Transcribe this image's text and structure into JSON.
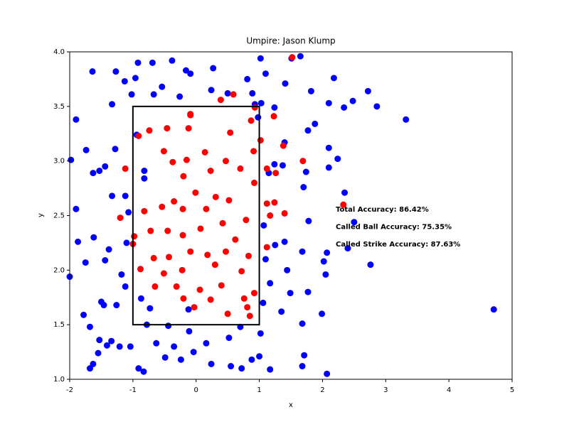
{
  "chart_data": {
    "type": "scatter",
    "title": "Umpire: Jason Klump",
    "x_label": "x",
    "y_label": "y",
    "xlim": [
      -2,
      5
    ],
    "ylim": [
      1,
      4
    ],
    "xticks": [
      -2,
      -1,
      0,
      1,
      2,
      3,
      4,
      5
    ],
    "yticks": [
      {
        "value": 1,
        "label": "1.0"
      },
      {
        "value": 1.5,
        "label": "1.5"
      },
      {
        "value": 2,
        "label": "2.0"
      },
      {
        "value": 2.5,
        "label": "2.5"
      },
      {
        "value": 3,
        "label": "3.0"
      },
      {
        "value": 3.5,
        "label": "3.5"
      },
      {
        "value": 4,
        "label": "4.0"
      }
    ],
    "strike_zone": {
      "x": [
        -1,
        1
      ],
      "y": [
        1.5,
        3.5
      ]
    },
    "annotations": [
      "Total Accuracy: 86.42%",
      "Called Ball Accuracy: 75.35%",
      "Called Strike Accuracy: 87.63%"
    ],
    "series": [
      {
        "color": "#0000ff",
        "x": [
          4.71,
          3.32,
          2.86,
          2.72,
          2.76,
          2.48,
          2.34,
          2.35,
          2.24,
          2.1,
          2.1,
          2.18,
          2.07,
          2.1,
          2.5,
          2.4,
          1.88,
          1.82,
          1.77,
          1.78,
          1.74,
          1.7,
          1.77,
          1.68,
          1.68,
          1.71,
          1.68,
          1.51,
          1.65,
          1.41,
          1.24,
          1.4,
          1.37,
          1.49,
          1.35,
          1.44,
          1.4,
          1.17,
          1.02,
          1.1,
          1.02,
          0.81,
          0.89,
          0.5,
          0.24,
          0.27,
          -0.09,
          -0.16,
          -0.38,
          -0.69,
          -0.92,
          -0.96,
          -1.13,
          -1.27,
          -1.64,
          -1.33,
          -1.02,
          -0.67,
          -0.54,
          -0.26,
          -1.9,
          -1.74,
          -1.98,
          -1.63,
          -1.53,
          -1.44,
          -1.28,
          -1.33,
          -1.12,
          -1.07,
          -1.1,
          -1.9,
          -1.87,
          -1.62,
          -1.38,
          -1.44,
          -1.75,
          -2.0,
          -1.18,
          -1.12,
          -1.26,
          -1.46,
          -1.78,
          -1.68,
          -1.5,
          -1.53,
          -1.41,
          -1.34,
          -1.21,
          -1.55,
          -1.63,
          -1.68,
          -1.04,
          -0.91,
          -0.83,
          -0.63,
          -0.49,
          -0.35,
          -0.11,
          -0.04,
          -0.24,
          0.16,
          0.24,
          0.55,
          0.72,
          0.88,
          1.0,
          0.7,
          0.52,
          -0.73,
          -0.87,
          -0.78,
          -0.44,
          -0.12,
          1.06,
          1.17,
          1.1,
          1.07,
          1.25,
          1.15,
          1.24,
          1.03,
          0.93,
          0.98,
          -0.94,
          -0.82,
          -0.82,
          1.99,
          2.05,
          2.02,
          2.07
        ],
        "values": [
          1.64,
          3.38,
          3.5,
          3.64,
          2.05,
          3.55,
          3.49,
          2.71,
          3.02,
          2.94,
          3.12,
          3.76,
          1.05,
          3.53,
          2.44,
          2.2,
          3.34,
          3.64,
          3.28,
          2.45,
          2.9,
          2.76,
          1.8,
          2.17,
          1.12,
          1.22,
          1.51,
          3.94,
          3.96,
          3.71,
          3.49,
          3.17,
          2.96,
          1.79,
          1.62,
          2.0,
          2.26,
          1.09,
          1.42,
          3.8,
          3.94,
          3.75,
          3.62,
          3.62,
          3.65,
          3.85,
          3.8,
          3.83,
          3.92,
          3.9,
          3.9,
          3.76,
          3.73,
          3.82,
          3.82,
          3.52,
          3.61,
          3.61,
          3.68,
          3.59,
          3.38,
          3.1,
          3.01,
          2.89,
          2.91,
          2.95,
          3.11,
          2.68,
          2.68,
          2.53,
          2.25,
          2.56,
          2.26,
          2.3,
          2.19,
          2.09,
          2.07,
          1.94,
          1.96,
          1.85,
          1.68,
          1.68,
          1.59,
          1.48,
          1.71,
          1.36,
          1.31,
          1.35,
          1.3,
          1.24,
          1.14,
          1.1,
          1.3,
          1.1,
          1.07,
          1.33,
          1.2,
          1.3,
          1.44,
          1.25,
          1.18,
          1.33,
          1.14,
          1.12,
          1.1,
          1.18,
          1.21,
          1.48,
          1.38,
          1.65,
          1.74,
          1.5,
          1.49,
          1.64,
          1.7,
          1.88,
          2.1,
          2.41,
          2.23,
          2.89,
          2.97,
          3.53,
          3.52,
          3.4,
          3.24,
          2.91,
          2.84,
          1.6,
          1.96,
          2.08,
          2.16
        ]
      },
      {
        "color": "#ff0000",
        "x": [
          1.52,
          0.59,
          0.93,
          1.23,
          1.38,
          1.69,
          2.33,
          -1.2,
          -1.12,
          -0.91,
          -0.74,
          -0.46,
          -0.09,
          -0.09,
          -0.12,
          0.39,
          0.54,
          0.87,
          0.91,
          1.02,
          1.12,
          1.26,
          1.12,
          1.4,
          1.24,
          1.17,
          1.12,
          -0.51,
          -0.37,
          -0.15,
          0.14,
          0.23,
          0.47,
          0.7,
          0.92,
          -0.35,
          -0.2,
          -0.01,
          0.31,
          0.52,
          -0.82,
          -0.54,
          -0.21,
          0.16,
          0.79,
          -0.72,
          -0.45,
          -0.21,
          0.07,
          0.42,
          0.62,
          -0.67,
          -0.43,
          -0.09,
          0.18,
          0.47,
          0.83,
          -0.88,
          -0.51,
          -0.22,
          0.3,
          0.72,
          -0.65,
          -0.31,
          0.06,
          0.4,
          0.76,
          0.92,
          -0.2,
          -0.03,
          0.23,
          0.5,
          0.81,
          0.85,
          -0.98,
          -1.0
        ],
        "values": [
          3.95,
          3.61,
          3.49,
          3.41,
          3.14,
          3.0,
          2.6,
          2.48,
          2.93,
          3.23,
          3.28,
          3.3,
          3.43,
          3.42,
          3.3,
          3.56,
          3.26,
          3.37,
          3.09,
          3.19,
          2.93,
          2.89,
          2.61,
          2.52,
          2.62,
          2.5,
          2.21,
          3.09,
          2.99,
          3.01,
          3.08,
          2.91,
          3.0,
          2.93,
          2.8,
          2.63,
          2.86,
          2.71,
          2.67,
          2.64,
          2.54,
          2.58,
          2.56,
          2.56,
          2.46,
          2.36,
          2.36,
          2.32,
          2.38,
          2.43,
          2.28,
          2.11,
          2.12,
          2.17,
          2.14,
          2.17,
          2.13,
          2.01,
          1.97,
          2.0,
          2.05,
          1.99,
          1.85,
          1.85,
          1.82,
          1.86,
          1.74,
          1.79,
          1.74,
          1.66,
          1.73,
          1.6,
          1.66,
          1.58,
          2.31,
          2.24
        ]
      }
    ]
  }
}
